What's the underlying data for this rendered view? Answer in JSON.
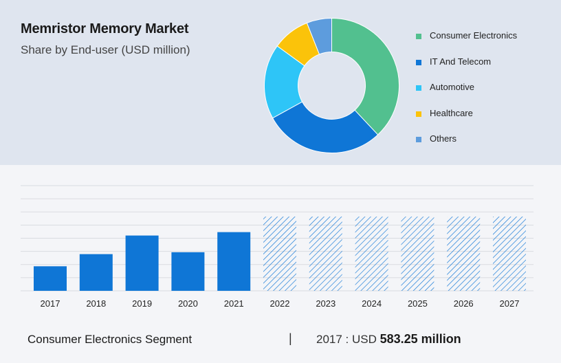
{
  "header": {
    "title": "Memristor Memory Market",
    "subtitle": "Share by End-user (USD million)"
  },
  "chart_data": [
    {
      "type": "pie",
      "donut": true,
      "legend_position": "right",
      "slices": [
        {
          "label": "Consumer Electronics",
          "value": 38,
          "color": "#52c08f"
        },
        {
          "label": "IT And Telecom",
          "value": 29,
          "color": "#0f76d6"
        },
        {
          "label": "Automotive",
          "value": 18,
          "color": "#2ec5f7"
        },
        {
          "label": "Healthcare",
          "value": 9,
          "color": "#fbc30a"
        },
        {
          "label": "Others",
          "value": 6,
          "color": "#5d9cdd"
        }
      ]
    },
    {
      "type": "bar",
      "categories": [
        "2017",
        "2018",
        "2019",
        "2020",
        "2021",
        "2022",
        "2023",
        "2024",
        "2025",
        "2026",
        "2027"
      ],
      "values": [
        583.25,
        872,
        1314,
        917,
        1395,
        null,
        null,
        null,
        null,
        null,
        null
      ],
      "forecast_categories": [
        "2022",
        "2023",
        "2024",
        "2025",
        "2026",
        "2027"
      ],
      "ylim": [
        0,
        2500
      ],
      "grid": true,
      "bar_color": "#0f76d6",
      "forecast_pattern": "diagonal-hatch"
    }
  ],
  "footer": {
    "segment": "Consumer Electronics Segment",
    "separator": "|",
    "year_prefix": "2017 : USD",
    "value": "583.25 million"
  }
}
